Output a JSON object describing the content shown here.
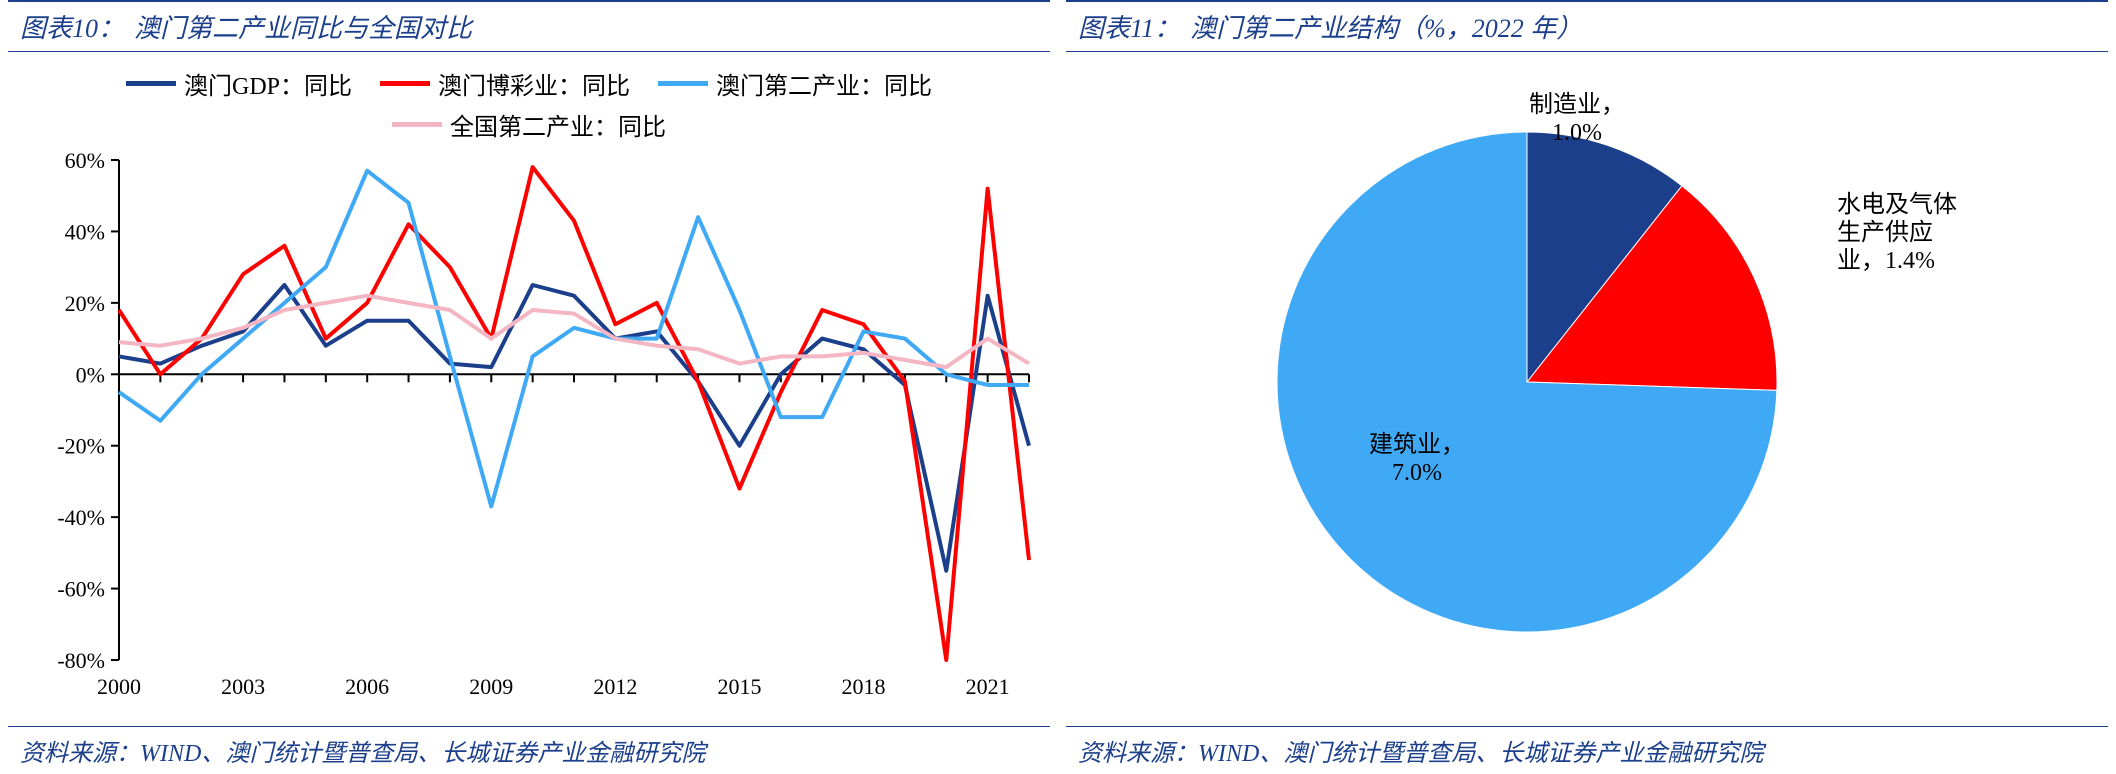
{
  "left": {
    "title_prefix": "图表10：",
    "title_text": "澳门第二产业同比与全国对比",
    "source": "资料来源：WIND、澳门统计暨普查局、长城证券产业金融研究院",
    "chart": {
      "type": "line",
      "background_color": "#ffffff",
      "axis_color": "#000000",
      "tick_color": "#000000",
      "x_years": [
        2000,
        2001,
        2002,
        2003,
        2004,
        2005,
        2006,
        2007,
        2008,
        2009,
        2010,
        2011,
        2012,
        2013,
        2014,
        2015,
        2016,
        2017,
        2018,
        2019,
        2020,
        2021,
        2022
      ],
      "x_tick_years": [
        2000,
        2003,
        2006,
        2009,
        2012,
        2015,
        2018,
        2021
      ],
      "ylim": [
        -80,
        60
      ],
      "ytick_step": 20,
      "y_format": "percent",
      "line_width": 4,
      "series": [
        {
          "name": "澳门GDP：同比",
          "color": "#1b3f8b",
          "values": [
            5,
            3,
            8,
            12,
            25,
            8,
            15,
            15,
            3,
            2,
            25,
            22,
            10,
            12,
            -2,
            -20,
            0,
            10,
            7,
            -3,
            -55,
            22,
            -20
          ]
        },
        {
          "name": "澳门博彩业：同比",
          "color": "#ff0000",
          "values": [
            18,
            0,
            10,
            28,
            36,
            10,
            20,
            42,
            30,
            10,
            58,
            43,
            14,
            20,
            -2,
            -32,
            -5,
            18,
            14,
            -2,
            -80,
            52,
            -52
          ]
        },
        {
          "name": "澳门第二产业：同比",
          "color": "#3fa9f5",
          "values": [
            -5,
            -13,
            0,
            10,
            20,
            30,
            57,
            48,
            5,
            -37,
            5,
            13,
            10,
            10,
            44,
            18,
            -12,
            -12,
            12,
            10,
            0,
            -3,
            -3
          ]
        },
        {
          "name": "全国第二产业：同比",
          "color": "#f4b6c2",
          "values": [
            9,
            8,
            10,
            13,
            18,
            20,
            22,
            20,
            18,
            10,
            18,
            17,
            10,
            8,
            7,
            3,
            5,
            5,
            6,
            4,
            2,
            10,
            3
          ]
        }
      ]
    }
  },
  "right": {
    "title_prefix": "图表11：",
    "title_text": "澳门第二产业结构（%，2022 年）",
    "source": "资料来源：WIND、澳门统计暨普查局、长城证券产业金融研究院",
    "chart": {
      "type": "pie",
      "background_color": "#ffffff",
      "start_angle_deg": 90,
      "direction": "clockwise",
      "slices": [
        {
          "name": "制造业",
          "value": 1.0,
          "color": "#1b3f8b",
          "label": "制造业，\n1.0%"
        },
        {
          "name": "水电及气体生产供应业",
          "value": 1.4,
          "color": "#ff0000",
          "label": "水电及气体\n生产供应\n业，1.4%"
        },
        {
          "name": "建筑业",
          "value": 7.0,
          "color": "#3fa9f5",
          "label": "建筑业，\n7.0%"
        }
      ],
      "label_fontsize": 24,
      "label_color": "#000000"
    }
  }
}
